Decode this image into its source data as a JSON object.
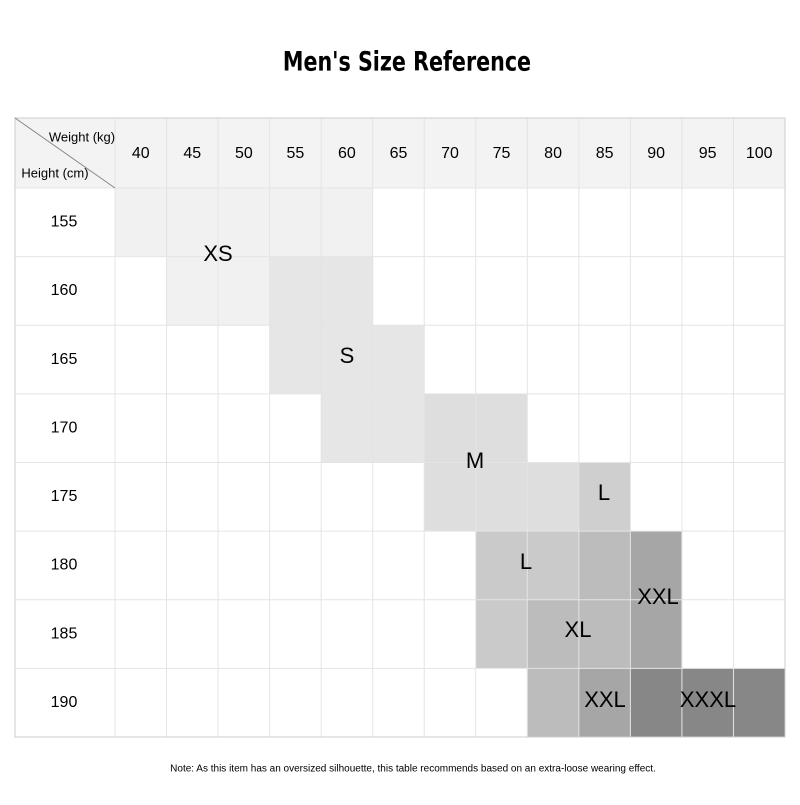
{
  "title": "Men's Size Reference",
  "table": {
    "corner_top": "Weight (kg)",
    "corner_bottom": "Height (cm)",
    "weights": [
      "40",
      "45",
      "50",
      "55",
      "60",
      "65",
      "70",
      "75",
      "80",
      "85",
      "90",
      "95",
      "100"
    ],
    "heights": [
      "155",
      "160",
      "165",
      "170",
      "175",
      "180",
      "185",
      "190"
    ]
  },
  "sizes": [
    "XS",
    "S",
    "M",
    "L",
    "L",
    "XXL",
    "XL",
    "XXL",
    "XXXL"
  ],
  "note": "Note: As this item has an oversized silhouette, this table recommends based on an extra-loose wearing effect."
}
